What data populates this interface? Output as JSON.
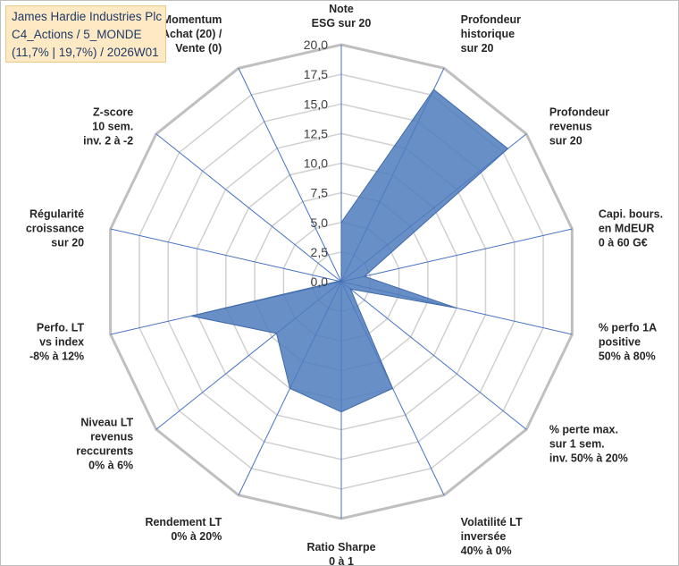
{
  "title_box": {
    "line1": "James Hardie Industries Plc",
    "line2": "C4_Actions / 5_MONDE",
    "line3": "(11,7% | 19,7%) / 2026W01"
  },
  "chart_data": {
    "type": "radar",
    "ylim": [
      0,
      20
    ],
    "ticks": [
      "0,0",
      "2,5",
      "5,0",
      "7,5",
      "10,0",
      "12,5",
      "15,0",
      "17,5",
      "20,0"
    ],
    "grid": true,
    "axes": [
      [
        "Note",
        "ESG sur 20"
      ],
      [
        "Profondeur",
        "historique",
        "sur 20"
      ],
      [
        "Profondeur",
        "revenus",
        "sur 20"
      ],
      [
        "Capi. bours.",
        "en MdEUR",
        "0 à 60 G€"
      ],
      [
        "% perfo 1A",
        "positive",
        "50% à 80%"
      ],
      [
        "% perte max.",
        "sur 1 sem.",
        "inv. 50% à 20%"
      ],
      [
        "Volatilité LT",
        "inversée",
        "40% à 0%"
      ],
      [
        "Ratio Sharpe",
        "0 à 1"
      ],
      [
        "Rendement LT",
        "0% à 20%"
      ],
      [
        "Niveau LT",
        "revenus",
        "reccurents",
        "0% à 6%"
      ],
      [
        "Perfo. LT",
        "vs index",
        "-8% à 12%"
      ],
      [
        "Régularité",
        "croissance",
        "sur 20"
      ],
      [
        "Z-score",
        "10 sem.",
        "inv. 2 à -2"
      ],
      [
        "Momentum",
        "Achat (20) /",
        "Vente (0)"
      ]
    ],
    "values": [
      5.0,
      18.0,
      18.0,
      2.0,
      10.0,
      1.0,
      10.0,
      11.0,
      10.0,
      7.0,
      13.0,
      0.2,
      0.0,
      0.0
    ],
    "colors": {
      "fill": "#4f7bbd",
      "stroke": "#3f6aa8",
      "grid": "#d0d0d0",
      "outer": "#bfbfbf",
      "spoke": "#4472c4"
    }
  }
}
